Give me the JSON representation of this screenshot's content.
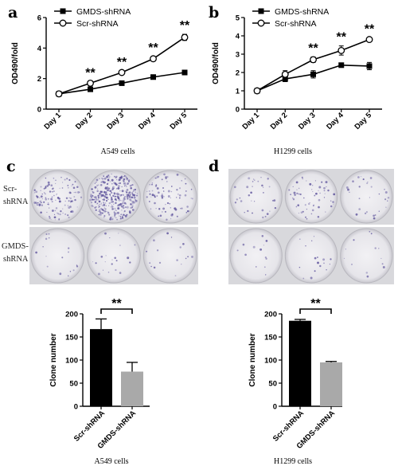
{
  "panels": {
    "a": "a",
    "b": "b",
    "c": "c",
    "d": "d"
  },
  "captions": {
    "a": "A549 cells",
    "b": "H1299 cells",
    "e": "A549 cells",
    "f": "H1299 cells"
  },
  "row_labels": {
    "scr_line1": "Scr-",
    "scr_line2": "shRNA",
    "gmds_line1": "GMDS-",
    "gmds_line2": "shRNA"
  },
  "colony_wells": {
    "A549": {
      "scr": [
        0.3,
        0.85,
        0.2
      ],
      "gmds": [
        0.04,
        0.05,
        0.04
      ]
    },
    "H1299": {
      "scr": [
        0.08,
        0.14,
        0.07
      ],
      "gmds": [
        0.03,
        0.04,
        0.03
      ]
    }
  },
  "significance": "**",
  "chart_data": [
    {
      "type": "line",
      "panel": "a",
      "caption": "A549 cells",
      "categories": [
        "Day 1",
        "Day 2",
        "Day 3",
        "Day 4",
        "Day 5"
      ],
      "ylabel": "OD490/fold",
      "ylim": [
        0,
        6
      ],
      "yticks": [
        0,
        2,
        4,
        6
      ],
      "legend_position": "top-left",
      "series": [
        {
          "name": "GMDS-shRNA",
          "marker": "filled-square",
          "values": [
            1.0,
            1.3,
            1.7,
            2.1,
            2.4
          ],
          "errors": [
            0.05,
            0.08,
            0.08,
            0.08,
            0.08
          ]
        },
        {
          "name": "Scr-shRNA",
          "marker": "open-circle",
          "values": [
            1.0,
            1.7,
            2.4,
            3.3,
            4.7
          ],
          "errors": [
            0.05,
            0.1,
            0.1,
            0.15,
            0.2
          ]
        }
      ],
      "significance_marks": [
        "",
        "**",
        "**",
        "**",
        "**"
      ]
    },
    {
      "type": "line",
      "panel": "b",
      "caption": "H1299 cells",
      "categories": [
        "Day 1",
        "Day 2",
        "Day 3",
        "Day 4",
        "Day 5"
      ],
      "ylabel": "OD490/fold",
      "ylim": [
        0,
        5
      ],
      "yticks": [
        0,
        1,
        2,
        3,
        4,
        5
      ],
      "legend_position": "top-left",
      "series": [
        {
          "name": "GMDS-shRNA",
          "marker": "filled-square",
          "values": [
            1.0,
            1.65,
            1.9,
            2.4,
            2.35
          ],
          "errors": [
            0.05,
            0.15,
            0.2,
            0.1,
            0.2
          ]
        },
        {
          "name": "Scr-shRNA",
          "marker": "open-circle",
          "values": [
            1.0,
            1.9,
            2.7,
            3.2,
            3.8
          ],
          "errors": [
            0.05,
            0.2,
            0.15,
            0.25,
            0.1
          ]
        }
      ],
      "significance_marks": [
        "",
        "",
        "**",
        "**",
        "**"
      ]
    },
    {
      "type": "bar",
      "panel": "c",
      "caption": "A549 cells",
      "categories": [
        "Scr-shRNA",
        "GMDS-shRNA"
      ],
      "values": [
        167,
        75
      ],
      "errors": [
        22,
        20
      ],
      "colors": [
        "#000000",
        "#a9a9a9"
      ],
      "ylabel": "Clone number",
      "ylim": [
        0,
        200
      ],
      "yticks": [
        0,
        50,
        100,
        150,
        200
      ],
      "significance": "**"
    },
    {
      "type": "bar",
      "panel": "d",
      "caption": "H1299 cells",
      "categories": [
        "Scr-shRNA",
        "GMDS-shRNA"
      ],
      "values": [
        185,
        95
      ],
      "errors": [
        3,
        2
      ],
      "colors": [
        "#000000",
        "#a9a9a9"
      ],
      "ylabel": "Clone number",
      "ylim": [
        0,
        200
      ],
      "yticks": [
        0,
        50,
        100,
        150,
        200
      ],
      "significance": "**"
    }
  ]
}
